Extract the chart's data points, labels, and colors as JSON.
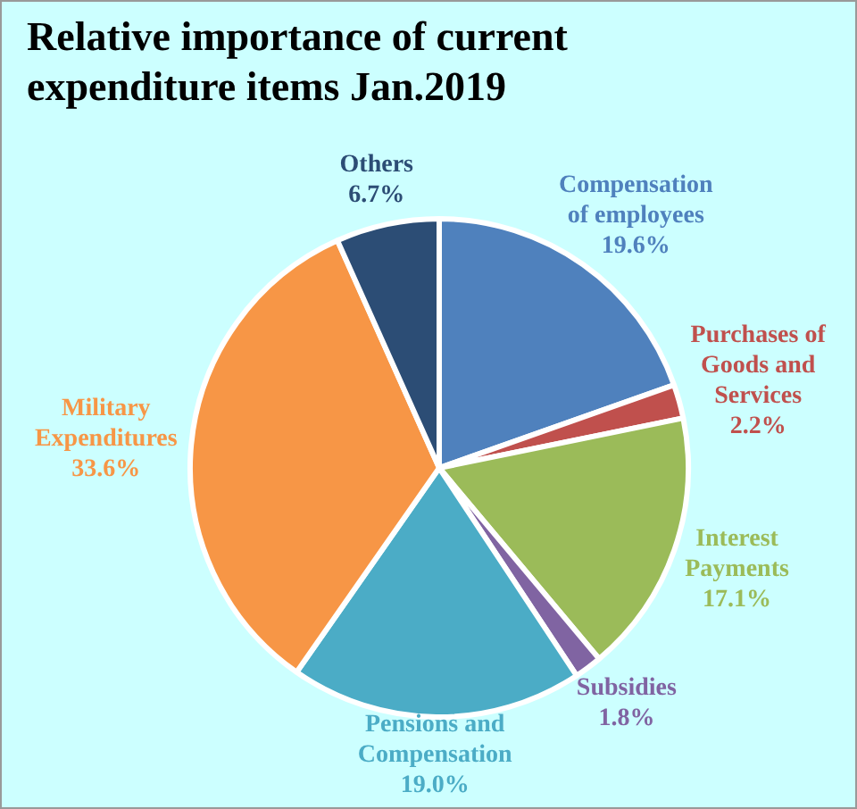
{
  "chart_data": {
    "type": "pie",
    "title": "Relative importance of current expenditure  items Jan.2019",
    "categories": [
      "Compensation of employees",
      "Purchases of Goods and Services",
      "Interest Payments",
      "Subsidies",
      "Pensions and Compensation",
      "Military Expenditures",
      "Others"
    ],
    "values": [
      19.6,
      2.2,
      17.1,
      1.8,
      19.0,
      33.6,
      6.7
    ],
    "colors": [
      "#4f81bd",
      "#c0504d",
      "#9bbb59",
      "#8064a2",
      "#4bacc6",
      "#f79646",
      "#2c4d75"
    ],
    "value_labels": [
      "19.6%",
      "2.2%",
      "17.1%",
      "1.8%",
      "19.0%",
      "33.6%",
      "6.7%"
    ],
    "legend": false
  }
}
